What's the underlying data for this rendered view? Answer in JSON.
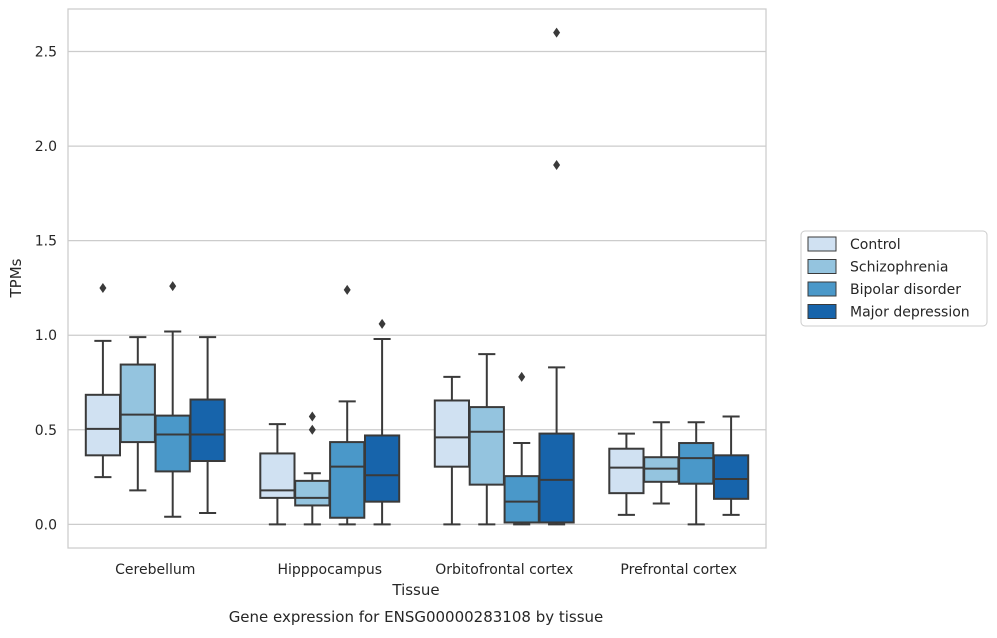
{
  "chart_data": {
    "type": "box",
    "title": "",
    "caption": "Gene expression for ENSG00000283108 by tissue",
    "xlabel": "Tissue",
    "ylabel": "TPMs",
    "categories": [
      "Cerebellum",
      "Hipppocampus",
      "Orbitofrontal cortex",
      "Prefrontal cortex"
    ],
    "ylim": [
      -0.125,
      2.725
    ],
    "yticks": [
      "0.0",
      "0.5",
      "1.0",
      "1.5",
      "2.0",
      "2.5"
    ],
    "ytick_values": [
      0.0,
      0.5,
      1.0,
      1.5,
      2.0,
      2.5
    ],
    "grid": "horizontal",
    "legend_position": "right",
    "series": [
      {
        "name": "Control",
        "color": "#d0e1f2",
        "boxes": [
          {
            "whisker_low": 0.25,
            "q1": 0.365,
            "median": 0.505,
            "q3": 0.685,
            "whisker_high": 0.97,
            "outliers": [
              1.25
            ]
          },
          {
            "whisker_low": 0.0,
            "q1": 0.14,
            "median": 0.18,
            "q3": 0.375,
            "whisker_high": 0.53,
            "outliers": []
          },
          {
            "whisker_low": 0.0,
            "q1": 0.305,
            "median": 0.46,
            "q3": 0.655,
            "whisker_high": 0.78,
            "outliers": []
          },
          {
            "whisker_low": 0.05,
            "q1": 0.165,
            "median": 0.3,
            "q3": 0.4,
            "whisker_high": 0.48,
            "outliers": []
          }
        ]
      },
      {
        "name": "Schizophrenia",
        "color": "#94c4df",
        "boxes": [
          {
            "whisker_low": 0.18,
            "q1": 0.435,
            "median": 0.58,
            "q3": 0.845,
            "whisker_high": 0.99,
            "outliers": []
          },
          {
            "whisker_low": 0.0,
            "q1": 0.1,
            "median": 0.14,
            "q3": 0.23,
            "whisker_high": 0.27,
            "outliers": [
              0.5,
              0.57
            ]
          },
          {
            "whisker_low": 0.0,
            "q1": 0.21,
            "median": 0.49,
            "q3": 0.62,
            "whisker_high": 0.9,
            "outliers": []
          },
          {
            "whisker_low": 0.11,
            "q1": 0.225,
            "median": 0.295,
            "q3": 0.355,
            "whisker_high": 0.54,
            "outliers": []
          }
        ]
      },
      {
        "name": "Bipolar disorder",
        "color": "#4a98c9",
        "boxes": [
          {
            "whisker_low": 0.04,
            "q1": 0.28,
            "median": 0.475,
            "q3": 0.575,
            "whisker_high": 1.02,
            "outliers": [
              1.26
            ]
          },
          {
            "whisker_low": 0.0,
            "q1": 0.035,
            "median": 0.305,
            "q3": 0.435,
            "whisker_high": 0.65,
            "outliers": [
              1.24
            ]
          },
          {
            "whisker_low": 0.0,
            "q1": 0.01,
            "median": 0.12,
            "q3": 0.255,
            "whisker_high": 0.43,
            "outliers": [
              0.78
            ]
          },
          {
            "whisker_low": 0.0,
            "q1": 0.215,
            "median": 0.35,
            "q3": 0.43,
            "whisker_high": 0.54,
            "outliers": []
          }
        ]
      },
      {
        "name": "Major depression",
        "color": "#1764ab",
        "boxes": [
          {
            "whisker_low": 0.06,
            "q1": 0.335,
            "median": 0.475,
            "q3": 0.66,
            "whisker_high": 0.99,
            "outliers": []
          },
          {
            "whisker_low": 0.0,
            "q1": 0.12,
            "median": 0.26,
            "q3": 0.47,
            "whisker_high": 0.98,
            "outliers": [
              1.06
            ]
          },
          {
            "whisker_low": 0.0,
            "q1": 0.01,
            "median": 0.235,
            "q3": 0.48,
            "whisker_high": 0.83,
            "outliers": [
              1.9,
              2.6
            ]
          },
          {
            "whisker_low": 0.05,
            "q1": 0.135,
            "median": 0.24,
            "q3": 0.365,
            "whisker_high": 0.57,
            "outliers": []
          }
        ]
      }
    ]
  }
}
